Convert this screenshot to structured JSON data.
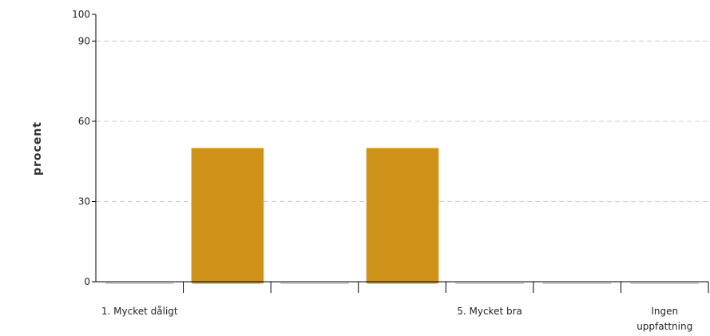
{
  "chart_data": {
    "type": "bar",
    "ylabel": "procent",
    "xlabel": "",
    "ylim": [
      0,
      100
    ],
    "yticks": [
      0,
      30,
      60,
      90,
      100
    ],
    "grid_lines": [
      30,
      60,
      90
    ],
    "grid": true,
    "categories": [
      "1. Mycket dåligt",
      "",
      "",
      "",
      "5. Mycket bra",
      "",
      "Ingen uppfattning"
    ],
    "category_label_lines": [
      [
        "1. Mycket dåligt"
      ],
      [
        ""
      ],
      [
        ""
      ],
      [
        ""
      ],
      [
        "5. Mycket bra"
      ],
      [
        ""
      ],
      [
        "Ingen",
        "uppfattning"
      ]
    ],
    "values": [
      0,
      50,
      0,
      50,
      0,
      0,
      0
    ],
    "bar_color": "#cf9218",
    "baseline_color": "#cccccc",
    "grid_color": "#cccccc"
  }
}
